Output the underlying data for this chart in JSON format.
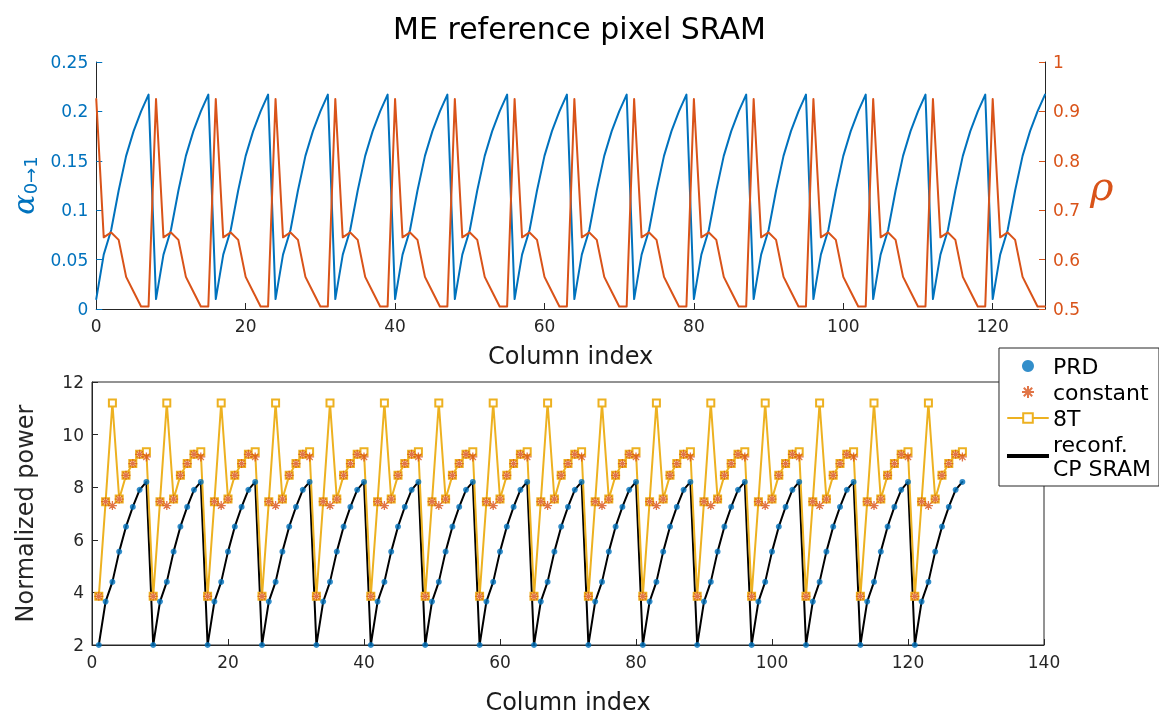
{
  "chart_data": [
    {
      "type": "line",
      "title": "ME reference pixel SRAM",
      "xlabel": "Column index",
      "ylabel": "α$_{0→1}$",
      "y2label": "ρ",
      "x": [
        0,
        1,
        2,
        3,
        4,
        5,
        6,
        7,
        8,
        9,
        10,
        11,
        12,
        13,
        14,
        15,
        16,
        17,
        18,
        19,
        20,
        21,
        22,
        23,
        24,
        25,
        26,
        27,
        28,
        29,
        30,
        31,
        32,
        33,
        34,
        35,
        36,
        37,
        38,
        39,
        40,
        41,
        42,
        43,
        44,
        45,
        46,
        47,
        48,
        49,
        50,
        51,
        52,
        53,
        54,
        55,
        56,
        57,
        58,
        59,
        60,
        61,
        62,
        63,
        64,
        65,
        66,
        67,
        68,
        69,
        70,
        71,
        72,
        73,
        74,
        75,
        76,
        77,
        78,
        79,
        80,
        81,
        82,
        83,
        84,
        85,
        86,
        87,
        88,
        89,
        90,
        91,
        92,
        93,
        94,
        95,
        96,
        97,
        98,
        99,
        100,
        101,
        102,
        103,
        104,
        105,
        106,
        107,
        108,
        109,
        110,
        111,
        112,
        113,
        114,
        115,
        116,
        117,
        118,
        119,
        120,
        121,
        122,
        123,
        124,
        125,
        126,
        127
      ],
      "series": [
        {
          "color": "#0072bd",
          "values": [
            0.01,
            0.055,
            0.08,
            0.12,
            0.155,
            0.18,
            0.2,
            0.217,
            0.01,
            0.055,
            0.08,
            0.12,
            0.155,
            0.18,
            0.2,
            0.217,
            0.01,
            0.055,
            0.08,
            0.12,
            0.155,
            0.18,
            0.2,
            0.217,
            0.01,
            0.055,
            0.08,
            0.12,
            0.155,
            0.18,
            0.2,
            0.217,
            0.01,
            0.055,
            0.08,
            0.12,
            0.155,
            0.18,
            0.2,
            0.217,
            0.01,
            0.055,
            0.08,
            0.12,
            0.155,
            0.18,
            0.2,
            0.217,
            0.01,
            0.055,
            0.08,
            0.12,
            0.155,
            0.18,
            0.2,
            0.217,
            0.01,
            0.055,
            0.08,
            0.12,
            0.155,
            0.18,
            0.2,
            0.217,
            0.01,
            0.055,
            0.08,
            0.12,
            0.155,
            0.18,
            0.2,
            0.217,
            0.01,
            0.055,
            0.08,
            0.12,
            0.155,
            0.18,
            0.2,
            0.217,
            0.01,
            0.055,
            0.08,
            0.12,
            0.155,
            0.18,
            0.2,
            0.217,
            0.01,
            0.055,
            0.08,
            0.12,
            0.155,
            0.18,
            0.2,
            0.217,
            0.01,
            0.055,
            0.08,
            0.12,
            0.155,
            0.18,
            0.2,
            0.217,
            0.01,
            0.055,
            0.08,
            0.12,
            0.155,
            0.18,
            0.2,
            0.217,
            0.01,
            0.055,
            0.08,
            0.12,
            0.155,
            0.18,
            0.2,
            0.217,
            0.01,
            0.055,
            0.08,
            0.12,
            0.155,
            0.18,
            0.2,
            0.217
          ]
        },
        {
          "color": "#d95319",
          "axis": "y2",
          "values": [
            0.925,
            0.645,
            0.655,
            0.64,
            0.565,
            0.535,
            0.505,
            0.505,
            0.925,
            0.645,
            0.655,
            0.64,
            0.565,
            0.535,
            0.505,
            0.505,
            0.925,
            0.645,
            0.655,
            0.64,
            0.565,
            0.535,
            0.505,
            0.505,
            0.925,
            0.645,
            0.655,
            0.64,
            0.565,
            0.535,
            0.505,
            0.505,
            0.925,
            0.645,
            0.655,
            0.64,
            0.565,
            0.535,
            0.505,
            0.505,
            0.925,
            0.645,
            0.655,
            0.64,
            0.565,
            0.535,
            0.505,
            0.505,
            0.925,
            0.645,
            0.655,
            0.64,
            0.565,
            0.535,
            0.505,
            0.505,
            0.925,
            0.645,
            0.655,
            0.64,
            0.565,
            0.535,
            0.505,
            0.505,
            0.925,
            0.645,
            0.655,
            0.64,
            0.565,
            0.535,
            0.505,
            0.505,
            0.925,
            0.645,
            0.655,
            0.64,
            0.565,
            0.535,
            0.505,
            0.505,
            0.925,
            0.645,
            0.655,
            0.64,
            0.565,
            0.535,
            0.505,
            0.505,
            0.925,
            0.645,
            0.655,
            0.64,
            0.565,
            0.535,
            0.505,
            0.505,
            0.925,
            0.645,
            0.655,
            0.64,
            0.565,
            0.535,
            0.505,
            0.505,
            0.925,
            0.645,
            0.655,
            0.64,
            0.565,
            0.535,
            0.505,
            0.505,
            0.925,
            0.645,
            0.655,
            0.64,
            0.565,
            0.535,
            0.505,
            0.505,
            0.925,
            0.645,
            0.655,
            0.64,
            0.565,
            0.535,
            0.505,
            0.505
          ]
        }
      ],
      "xlim": [
        0,
        127
      ],
      "xticks": [
        0,
        20,
        40,
        60,
        80,
        100,
        120
      ],
      "ylim": [
        0,
        0.25
      ],
      "yticks": [
        0,
        0.05,
        0.1,
        0.15,
        0.2,
        0.25
      ],
      "y2lim": [
        0.5,
        1
      ],
      "y2ticks": [
        0.5,
        0.6,
        0.7,
        0.8,
        0.9,
        1
      ],
      "marker": "none",
      "grid": false,
      "legend": false
    },
    {
      "type": "line",
      "xlabel": "Column index",
      "ylabel": "Normalized power",
      "x": [
        1,
        2,
        3,
        4,
        5,
        6,
        7,
        8,
        9,
        10,
        11,
        12,
        13,
        14,
        15,
        16,
        17,
        18,
        19,
        20,
        21,
        22,
        23,
        24,
        25,
        26,
        27,
        28,
        29,
        30,
        31,
        32,
        33,
        34,
        35,
        36,
        37,
        38,
        39,
        40,
        41,
        42,
        43,
        44,
        45,
        46,
        47,
        48,
        49,
        50,
        51,
        52,
        53,
        54,
        55,
        56,
        57,
        58,
        59,
        60,
        61,
        62,
        63,
        64,
        65,
        66,
        67,
        68,
        69,
        70,
        71,
        72,
        73,
        74,
        75,
        76,
        77,
        78,
        79,
        80,
        81,
        82,
        83,
        84,
        85,
        86,
        87,
        88,
        89,
        90,
        91,
        92,
        93,
        94,
        95,
        96,
        97,
        98,
        99,
        100,
        101,
        102,
        103,
        104,
        105,
        106,
        107,
        108,
        109,
        110,
        111,
        112,
        113,
        114,
        115,
        116,
        117,
        118,
        119,
        120,
        121,
        122,
        123,
        124,
        125,
        126,
        127,
        128
      ],
      "series": [
        {
          "name": "PRD",
          "type": "scatter",
          "marker": "circle",
          "color": "#0072bd",
          "values": [
            2,
            3.65,
            4.4,
            5.55,
            6.5,
            7.25,
            7.9,
            8.2,
            2,
            3.65,
            4.4,
            5.55,
            6.5,
            7.25,
            7.9,
            8.2,
            2,
            3.65,
            4.4,
            5.55,
            6.5,
            7.25,
            7.9,
            8.2,
            2,
            3.65,
            4.4,
            5.55,
            6.5,
            7.25,
            7.9,
            8.2,
            2,
            3.65,
            4.4,
            5.55,
            6.5,
            7.25,
            7.9,
            8.2,
            2,
            3.65,
            4.4,
            5.55,
            6.5,
            7.25,
            7.9,
            8.2,
            2,
            3.65,
            4.4,
            5.55,
            6.5,
            7.25,
            7.9,
            8.2,
            2,
            3.65,
            4.4,
            5.55,
            6.5,
            7.25,
            7.9,
            8.2,
            2,
            3.65,
            4.4,
            5.55,
            6.5,
            7.25,
            7.9,
            8.2,
            2,
            3.65,
            4.4,
            5.55,
            6.5,
            7.25,
            7.9,
            8.2,
            2,
            3.65,
            4.4,
            5.55,
            6.5,
            7.25,
            7.9,
            8.2,
            2,
            3.65,
            4.4,
            5.55,
            6.5,
            7.25,
            7.9,
            8.2,
            2,
            3.65,
            4.4,
            5.55,
            6.5,
            7.25,
            7.9,
            8.2,
            2,
            3.65,
            4.4,
            5.55,
            6.5,
            7.25,
            7.9,
            8.2,
            2,
            3.65,
            4.4,
            5.55,
            6.5,
            7.25,
            7.9,
            8.2,
            2,
            3.65,
            4.4,
            5.55,
            6.5,
            7.25,
            7.9,
            8.2
          ]
        },
        {
          "name": "constant",
          "type": "scatter",
          "marker": "cross",
          "color": "#d95319",
          "values": [
            3.85,
            7.45,
            7.3,
            7.55,
            8.45,
            8.9,
            9.25,
            9.15,
            3.85,
            7.45,
            7.3,
            7.55,
            8.45,
            8.9,
            9.25,
            9.15,
            3.85,
            7.45,
            7.3,
            7.55,
            8.45,
            8.9,
            9.25,
            9.15,
            3.85,
            7.45,
            7.3,
            7.55,
            8.45,
            8.9,
            9.25,
            9.15,
            3.85,
            7.45,
            7.3,
            7.55,
            8.45,
            8.9,
            9.25,
            9.15,
            3.85,
            7.45,
            7.3,
            7.55,
            8.45,
            8.9,
            9.25,
            9.15,
            3.85,
            7.45,
            7.3,
            7.55,
            8.45,
            8.9,
            9.25,
            9.15,
            3.85,
            7.45,
            7.3,
            7.55,
            8.45,
            8.9,
            9.25,
            9.15,
            3.85,
            7.45,
            7.3,
            7.55,
            8.45,
            8.9,
            9.25,
            9.15,
            3.85,
            7.45,
            7.3,
            7.55,
            8.45,
            8.9,
            9.25,
            9.15,
            3.85,
            7.45,
            7.3,
            7.55,
            8.45,
            8.9,
            9.25,
            9.15,
            3.85,
            7.45,
            7.3,
            7.55,
            8.45,
            8.9,
            9.25,
            9.15,
            3.85,
            7.45,
            7.3,
            7.55,
            8.45,
            8.9,
            9.25,
            9.15,
            3.85,
            7.45,
            7.3,
            7.55,
            8.45,
            8.9,
            9.25,
            9.15,
            3.85,
            7.45,
            7.3,
            7.55,
            8.45,
            8.9,
            9.25,
            9.15,
            3.85,
            7.45,
            7.3,
            7.55,
            8.45,
            8.9,
            9.25,
            9.15
          ]
        },
        {
          "name": "8T",
          "marker": "square",
          "color": "#edb120",
          "values": [
            3.85,
            7.45,
            11.2,
            7.55,
            8.45,
            8.9,
            9.25,
            9.35,
            3.85,
            7.45,
            11.2,
            7.55,
            8.45,
            8.9,
            9.25,
            9.35,
            3.85,
            7.45,
            11.2,
            7.55,
            8.45,
            8.9,
            9.25,
            9.35,
            3.85,
            7.45,
            11.2,
            7.55,
            8.45,
            8.9,
            9.25,
            9.35,
            3.85,
            7.45,
            11.2,
            7.55,
            8.45,
            8.9,
            9.25,
            9.35,
            3.85,
            7.45,
            11.2,
            7.55,
            8.45,
            8.9,
            9.25,
            9.35,
            3.85,
            7.45,
            11.2,
            7.55,
            8.45,
            8.9,
            9.25,
            9.35,
            3.85,
            7.45,
            11.2,
            7.55,
            8.45,
            8.9,
            9.25,
            9.35,
            3.85,
            7.45,
            11.2,
            7.55,
            8.45,
            8.9,
            9.25,
            9.35,
            3.85,
            7.45,
            11.2,
            7.55,
            8.45,
            8.9,
            9.25,
            9.35,
            3.85,
            7.45,
            11.2,
            7.55,
            8.45,
            8.9,
            9.25,
            9.35,
            3.85,
            7.45,
            11.2,
            7.55,
            8.45,
            8.9,
            9.25,
            9.35,
            3.85,
            7.45,
            11.2,
            7.55,
            8.45,
            8.9,
            9.25,
            9.35,
            3.85,
            7.45,
            11.2,
            7.55,
            8.45,
            8.9,
            9.25,
            9.35,
            3.85,
            7.45,
            11.2,
            7.55,
            8.45,
            8.9,
            9.25,
            9.35,
            3.85,
            7.45,
            11.2,
            7.55,
            8.45,
            8.9,
            9.25,
            9.35
          ]
        },
        {
          "name": "reconf.\nCP SRAM",
          "marker": "none",
          "color": "#000000",
          "values": [
            2,
            3.65,
            4.4,
            5.55,
            6.5,
            7.25,
            7.9,
            8.2,
            2,
            3.65,
            4.4,
            5.55,
            6.5,
            7.25,
            7.9,
            8.2,
            2,
            3.65,
            4.4,
            5.55,
            6.5,
            7.25,
            7.9,
            8.2,
            2,
            3.65,
            4.4,
            5.55,
            6.5,
            7.25,
            7.9,
            8.2,
            2,
            3.65,
            4.4,
            5.55,
            6.5,
            7.25,
            7.9,
            8.2,
            2,
            3.65,
            4.4,
            5.55,
            6.5,
            7.25,
            7.9,
            8.2,
            2,
            3.65,
            4.4,
            5.55,
            6.5,
            7.25,
            7.9,
            8.2,
            2,
            3.65,
            4.4,
            5.55,
            6.5,
            7.25,
            7.9,
            8.2,
            2,
            3.65,
            4.4,
            5.55,
            6.5,
            7.25,
            7.9,
            8.2,
            2,
            3.65,
            4.4,
            5.55,
            6.5,
            7.25,
            7.9,
            8.2,
            2,
            3.65,
            4.4,
            5.55,
            6.5,
            7.25,
            7.9,
            8.2,
            2,
            3.65,
            4.4,
            5.55,
            6.5,
            7.25,
            7.9,
            8.2,
            2,
            3.65,
            4.4,
            5.55,
            6.5,
            7.25,
            7.9,
            8.2,
            2,
            3.65,
            4.4,
            5.55,
            6.5,
            7.25,
            7.9,
            8.2,
            2,
            3.65,
            4.4,
            5.55,
            6.5,
            7.25,
            7.9,
            8.2,
            2,
            3.65,
            4.4,
            5.55,
            6.5,
            7.25,
            7.9,
            8.2
          ]
        }
      ],
      "xlim": [
        0,
        140
      ],
      "xticks": [
        0,
        20,
        40,
        60,
        80,
        100,
        120,
        140
      ],
      "ylim": [
        2,
        12
      ],
      "yticks": [
        2,
        4,
        6,
        8,
        10,
        12
      ],
      "grid": false,
      "legend": "top right"
    }
  ]
}
